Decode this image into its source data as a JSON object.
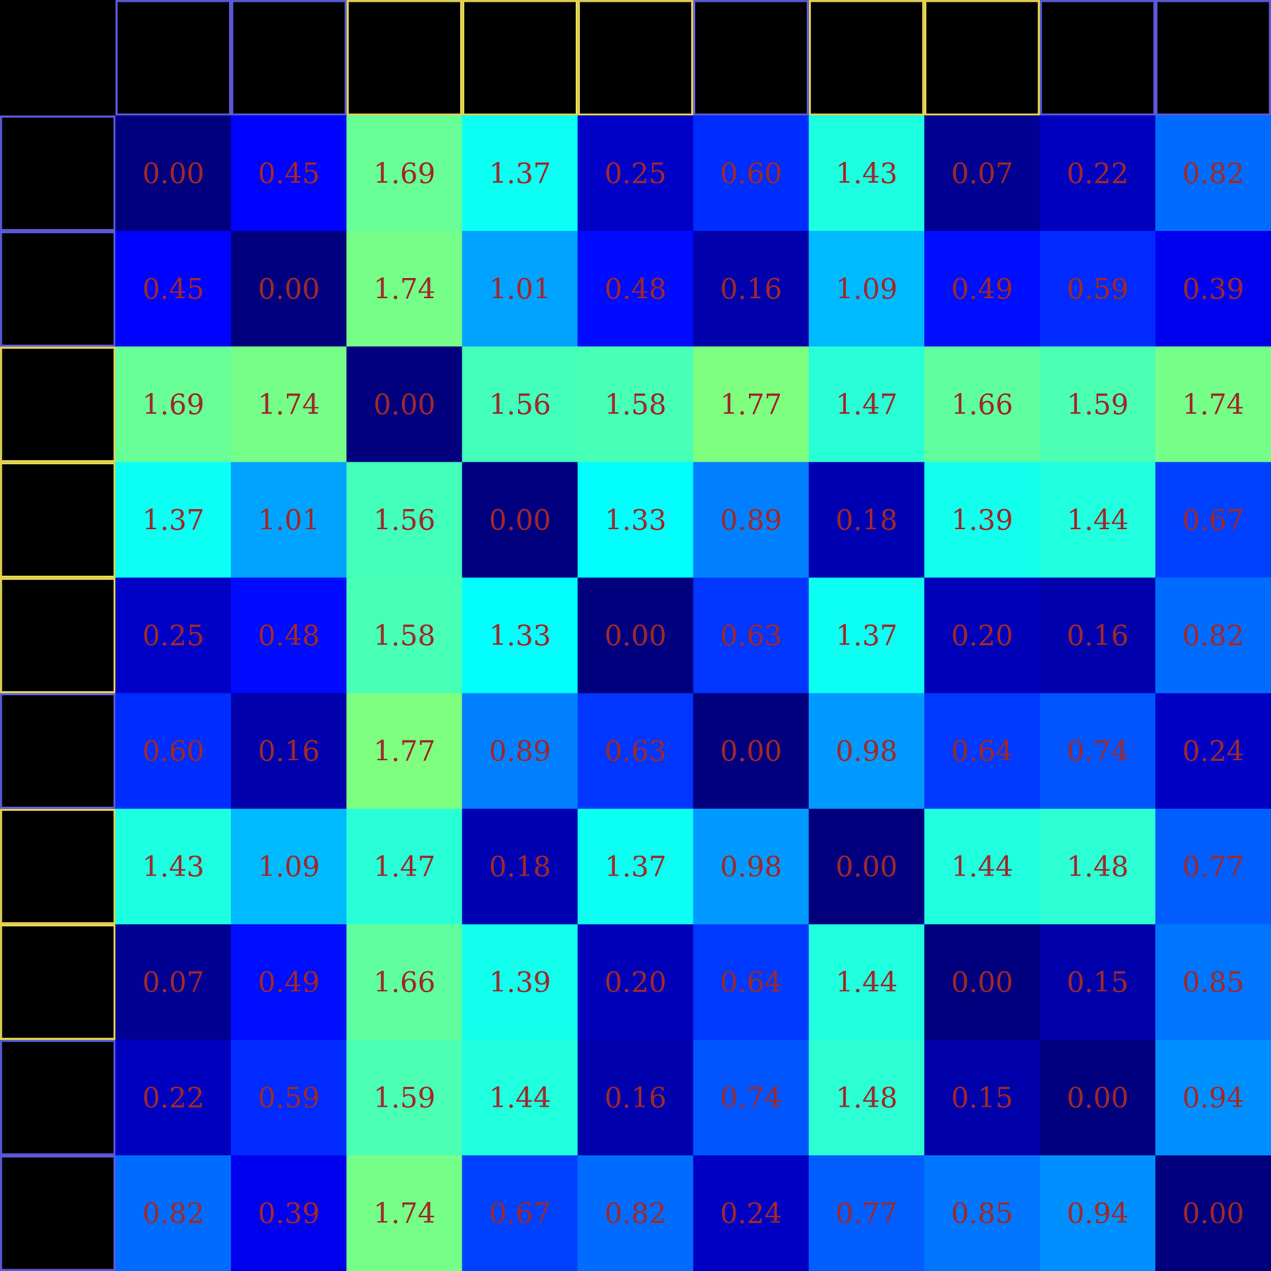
{
  "chart_data": {
    "type": "heatmap",
    "categories": [
      null,
      null,
      null,
      null,
      null,
      null,
      null,
      null,
      null,
      null
    ],
    "colors": [
      "#5a5ad8",
      "#5a5ad8",
      "#e0d050",
      "#e0d050",
      "#e0d050",
      "#5a5ad8",
      "#e0d050",
      "#e0d050",
      "#5a5ad8",
      "#5a5ad8"
    ],
    "tick_labels": false,
    "data_labels": true,
    "zlim": [
      0,
      3.54
    ],
    "values": [
      [
        0.0,
        0.45,
        1.69,
        1.37,
        0.25,
        0.6,
        1.43,
        0.07,
        0.22,
        0.82
      ],
      [
        0.45,
        0.0,
        1.74,
        1.01,
        0.48,
        0.16,
        1.09,
        0.49,
        0.59,
        0.39
      ],
      [
        1.69,
        1.74,
        0.0,
        1.56,
        1.58,
        1.77,
        1.47,
        1.66,
        1.59,
        1.74
      ],
      [
        1.37,
        1.01,
        1.56,
        0.0,
        1.33,
        0.89,
        0.18,
        1.39,
        1.44,
        0.67
      ],
      [
        0.25,
        0.48,
        1.58,
        1.33,
        0.0,
        0.63,
        1.37,
        0.2,
        0.16,
        0.82
      ],
      [
        0.6,
        0.16,
        1.77,
        0.89,
        0.63,
        0.0,
        0.98,
        0.64,
        0.74,
        0.24
      ],
      [
        1.43,
        1.09,
        1.47,
        0.18,
        1.37,
        0.98,
        0.0,
        1.44,
        1.48,
        0.77
      ],
      [
        0.07,
        0.49,
        1.66,
        1.39,
        0.2,
        0.64,
        1.44,
        0.0,
        0.15,
        0.85
      ],
      [
        0.22,
        0.59,
        1.59,
        1.44,
        0.16,
        0.74,
        1.48,
        0.15,
        0.0,
        0.94
      ],
      [
        0.82,
        0.39,
        1.74,
        0.67,
        0.82,
        0.24,
        0.77,
        0.85,
        0.94,
        0.0
      ]
    ],
    "value_labels": [
      [
        "0.00",
        "0.45",
        "1.69",
        "1.37",
        "0.25",
        "0.60",
        "1.43",
        "0.07",
        "0.22",
        "0.82"
      ],
      [
        "0.45",
        "0.00",
        "1.74",
        "1.01",
        "0.48",
        "0.16",
        "1.09",
        "0.49",
        "0.59",
        "0.39"
      ],
      [
        "1.69",
        "1.74",
        "0.00",
        "1.56",
        "1.58",
        "1.77",
        "1.47",
        "1.66",
        "1.59",
        "1.74"
      ],
      [
        "1.37",
        "1.01",
        "1.56",
        "0.00",
        "1.33",
        "0.89",
        "0.18",
        "1.39",
        "1.44",
        "0.67"
      ],
      [
        "0.25",
        "0.48",
        "1.58",
        "1.33",
        "0.00",
        "0.63",
        "1.37",
        "0.20",
        "0.16",
        "0.82"
      ],
      [
        "0.60",
        "0.16",
        "1.77",
        "0.89",
        "0.63",
        "0.00",
        "0.98",
        "0.64",
        "0.74",
        "0.24"
      ],
      [
        "1.43",
        "1.09",
        "1.47",
        "0.18",
        "1.37",
        "0.98",
        "0.00",
        "1.44",
        "1.48",
        "0.77"
      ],
      [
        "0.07",
        "0.49",
        "1.66",
        "1.39",
        "0.20",
        "0.64",
        "1.44",
        "0.00",
        "0.15",
        "0.85"
      ],
      [
        "0.22",
        "0.59",
        "1.59",
        "1.44",
        "0.16",
        "0.74",
        "1.48",
        "0.15",
        "0.00",
        "0.94"
      ],
      [
        "0.82",
        "0.39",
        "1.74",
        "0.67",
        "0.82",
        "0.24",
        "0.77",
        "0.85",
        "0.94",
        "0.00"
      ]
    ]
  }
}
